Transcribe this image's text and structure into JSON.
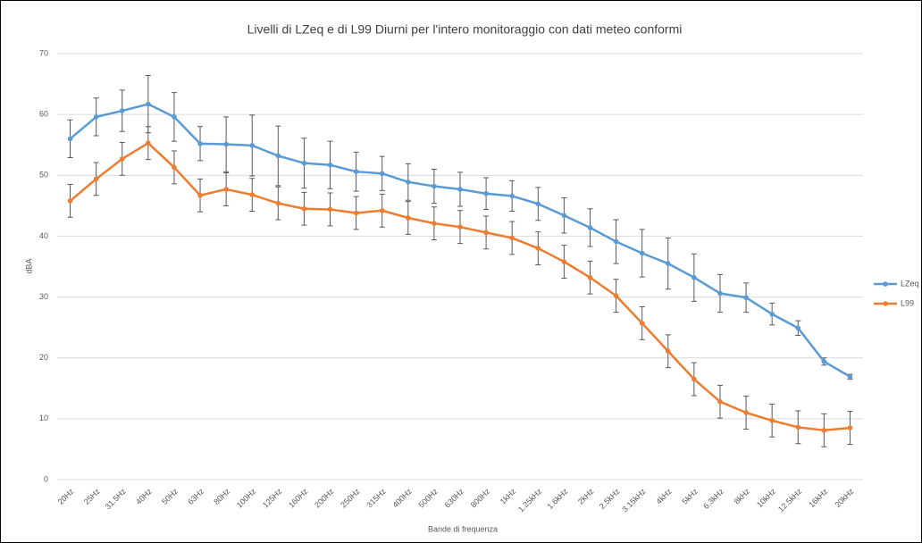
{
  "chart_data": {
    "type": "line",
    "title": "Livelli di LZeq e di L99 Diurni per l'intero monitoraggio con dati meteo conformi",
    "x_label": "Bande di frequenza",
    "y_label": "dBA",
    "categories": [
      "20Hz",
      "25Hz",
      "31.5Hz",
      "40Hz",
      "50Hz",
      "63Hz",
      "80Hz",
      "100Hz",
      "125Hz",
      "160Hz",
      "200Hz",
      "250Hz",
      "315Hz",
      "400Hz",
      "500Hz",
      "630Hz",
      "800Hz",
      "1kHz",
      "1.25kHz",
      "1.6kHz",
      "2kHz",
      "2.5kHz",
      "3.15kHz",
      "4kHz",
      "5kHz",
      "6.3kHz",
      "8kHz",
      "10kHz",
      "12.5kHz",
      "16kHz",
      "20kHz"
    ],
    "series": [
      {
        "name": "LZeq",
        "color": "#5b9bd5",
        "values": [
          56,
          59.6,
          60.6,
          61.7,
          59.6,
          55.2,
          55.1,
          54.9,
          53.2,
          52,
          51.7,
          50.6,
          50.3,
          48.9,
          48.2,
          47.7,
          47,
          46.6,
          45.3,
          43.4,
          41.4,
          39.1,
          37.2,
          35.5,
          33.2,
          30.6,
          29.9,
          27.2,
          24.9,
          19.4,
          16.9
        ],
        "errors": [
          3.1,
          3.1,
          3.4,
          4.7,
          4,
          2.8,
          4.5,
          5,
          4.9,
          4.1,
          3.9,
          3.2,
          2.8,
          3,
          2.8,
          2.8,
          2.6,
          2.5,
          2.7,
          2.9,
          3.1,
          3.6,
          3.9,
          4.2,
          3.9,
          3.1,
          2.4,
          1.8,
          1.2,
          0.6,
          0.4
        ]
      },
      {
        "name": "L99",
        "color": "#ed7d31",
        "values": [
          45.8,
          49.4,
          52.7,
          55.3,
          51.3,
          46.7,
          47.7,
          46.8,
          45.4,
          44.5,
          44.4,
          43.8,
          44.2,
          43,
          42.1,
          41.5,
          40.6,
          39.7,
          38,
          35.8,
          33.2,
          30.2,
          25.7,
          21.1,
          16.5,
          12.8,
          11,
          9.7,
          8.6,
          8.1,
          8.5
        ],
        "errors": [
          2.7,
          2.7,
          2.7,
          2.7,
          2.7,
          2.7,
          2.7,
          2.7,
          2.7,
          2.7,
          2.7,
          2.7,
          2.7,
          2.7,
          2.7,
          2.7,
          2.7,
          2.7,
          2.7,
          2.7,
          2.7,
          2.7,
          2.7,
          2.7,
          2.7,
          2.7,
          2.7,
          2.7,
          2.7,
          2.7,
          2.7
        ]
      }
    ],
    "ylim": [
      0,
      70
    ],
    "yticks": [
      0,
      10,
      20,
      30,
      40,
      50,
      60,
      70
    ],
    "grid": true,
    "legend": "right"
  }
}
